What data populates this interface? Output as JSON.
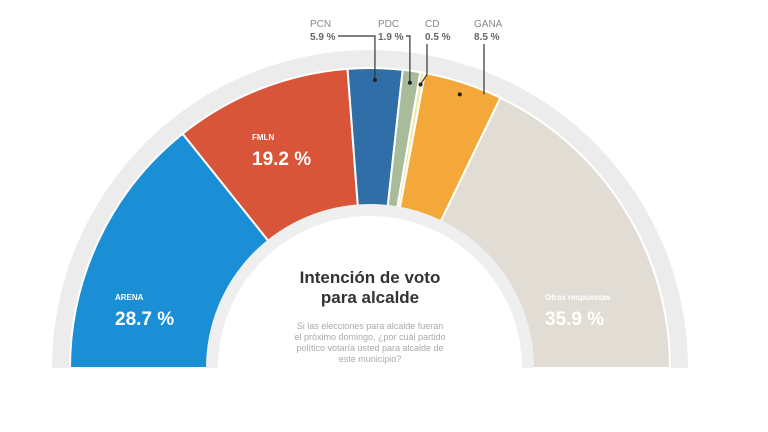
{
  "chart_data": {
    "type": "pie",
    "variant": "half-donut",
    "title": "Intención de voto para alcalde",
    "title_lines": [
      "Intención de voto",
      "para alcalde"
    ],
    "subtitle_lines": [
      "Si las elecciones para alcalde fueran",
      "el próximo domingo, ¿por cuál partido",
      "político votaría usted para alcalde de",
      "este municipio?"
    ],
    "slices": [
      {
        "name": "ARENA",
        "value": 28.7,
        "label": "28.7 %",
        "color": "#1a8fd6",
        "label_position": "inside"
      },
      {
        "name": "FMLN",
        "value": 19.2,
        "label": "19.2 %",
        "color": "#d9553a",
        "label_position": "inside"
      },
      {
        "name": "PCN",
        "value": 5.9,
        "label": "5.9 %",
        "color": "#2f6ea6",
        "label_position": "top"
      },
      {
        "name": "PDC",
        "value": 1.9,
        "label": "1.9 %",
        "color": "#a8bc9c",
        "label_position": "top"
      },
      {
        "name": "CD",
        "value": 0.5,
        "label": "0.5 %",
        "color": "#f3e7a2",
        "label_position": "top"
      },
      {
        "name": "GANA",
        "value": 8.5,
        "label": "8.5 %",
        "color": "#f5a83a",
        "label_position": "top"
      },
      {
        "name": "Otras respuestas",
        "value": 35.9,
        "label": "35.9 %",
        "color": "#e2ddd4",
        "label_position": "inside"
      }
    ]
  }
}
